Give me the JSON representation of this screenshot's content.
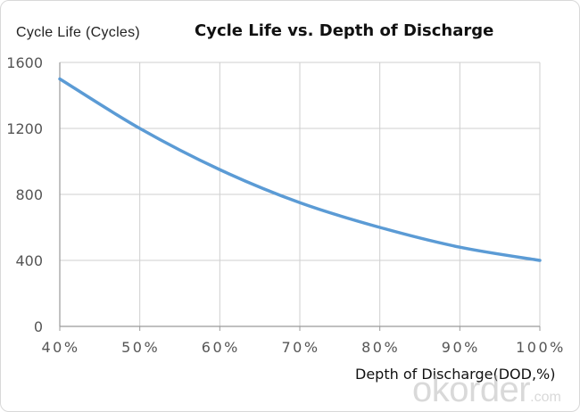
{
  "watermark": {
    "main": "okorder",
    "suffix": ".com"
  },
  "chart_data": {
    "type": "line",
    "title": "Cycle Life vs. Depth of Discharge",
    "ylabel": "Cycle Life (Cycles)",
    "xlabel": "Depth of Discharge(DOD,%)",
    "xlim": [
      40,
      100
    ],
    "ylim": [
      0,
      1600
    ],
    "x_ticks": [
      40,
      50,
      60,
      70,
      80,
      90,
      100
    ],
    "x_tick_labels": [
      "40%",
      "50%",
      "60%",
      "70%",
      "80%",
      "90%",
      "100%"
    ],
    "y_ticks": [
      0,
      400,
      800,
      1200,
      1600
    ],
    "y_tick_labels": [
      "0",
      "400",
      "800",
      "1200",
      "1600"
    ],
    "grid": true,
    "series": [
      {
        "color": "#5b9bd5",
        "x": [
          40,
          50,
          60,
          70,
          80,
          90,
          100
        ],
        "y": [
          1500,
          1200,
          950,
          750,
          600,
          480,
          400
        ]
      }
    ]
  }
}
